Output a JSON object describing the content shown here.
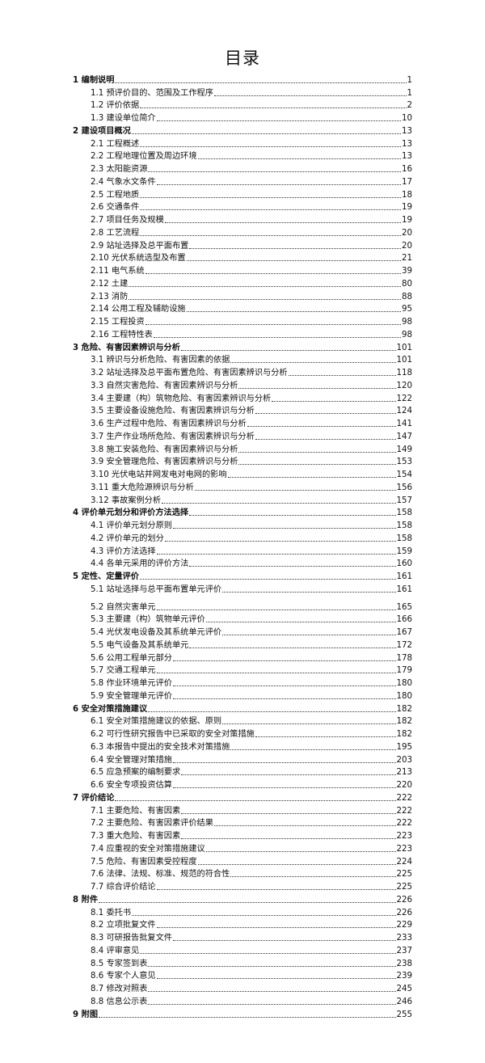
{
  "title": "目录",
  "entries": [
    {
      "level": 1,
      "label": "1 编制说明",
      "page": "1"
    },
    {
      "level": 2,
      "label": "1.1 预评价目的、范围及工作程序",
      "page": "1"
    },
    {
      "level": 2,
      "label": "1.2 评价依据",
      "page": "2"
    },
    {
      "level": 2,
      "label": "1.3 建设单位简介",
      "page": "10"
    },
    {
      "level": 1,
      "label": "2 建设项目概况",
      "page": "13"
    },
    {
      "level": 2,
      "label": "2.1 工程概述",
      "page": "13"
    },
    {
      "level": 2,
      "label": "2.2 工程地理位置及周边环境",
      "page": "13"
    },
    {
      "level": 2,
      "label": "2.3 太阳能资源",
      "page": "16"
    },
    {
      "level": 2,
      "label": "2.4 气象水文条件",
      "page": "17"
    },
    {
      "level": 2,
      "label": "2.5 工程地质",
      "page": "18"
    },
    {
      "level": 2,
      "label": "2.6 交通条件",
      "page": "19"
    },
    {
      "level": 2,
      "label": "2.7 项目任务及规模",
      "page": "19"
    },
    {
      "level": 2,
      "label": "2.8 工艺流程",
      "page": "20"
    },
    {
      "level": 2,
      "label": "2.9 站址选择及总平面布置",
      "page": "20"
    },
    {
      "level": 2,
      "label": "2.10 光伏系统选型及布置",
      "page": "21"
    },
    {
      "level": 2,
      "label": "2.11 电气系统",
      "page": "39"
    },
    {
      "level": 2,
      "label": "2.12 土建",
      "page": "80"
    },
    {
      "level": 2,
      "label": "2.13 消防",
      "page": "88"
    },
    {
      "level": 2,
      "label": "2.14 公用工程及辅助设施",
      "page": "95"
    },
    {
      "level": 2,
      "label": "2.15 工程投资",
      "page": "98"
    },
    {
      "level": 2,
      "label": "2.16 工程特性表",
      "page": "98"
    },
    {
      "level": 1,
      "label": "3 危险、有害因素辨识与分析",
      "page": "101"
    },
    {
      "level": 2,
      "label": "3.1 辨识与分析危险、有害因素的依据",
      "page": "101"
    },
    {
      "level": 2,
      "label": "3.2 站址选择及总平面布置危险、有害因素辨识与分析",
      "page": "118"
    },
    {
      "level": 2,
      "label": "3.3 自然灾害危险、有害因素辨识与分析",
      "page": "120"
    },
    {
      "level": 2,
      "label": "3.4 主要建（构）筑物危险、有害因素辨识与分析",
      "page": "122"
    },
    {
      "level": 2,
      "label": "3.5 主要设备设施危险、有害因素辨识与分析",
      "page": "124"
    },
    {
      "level": 2,
      "label": "3.6 生产过程中危险、有害因素辨识与分析",
      "page": "141"
    },
    {
      "level": 2,
      "label": "3.7 生产作业场所危险、有害因素辨识与分析",
      "page": "147"
    },
    {
      "level": 2,
      "label": "3.8 施工安装危险、有害因素辨识与分析",
      "page": "149"
    },
    {
      "level": 2,
      "label": "3.9 安全管理危险、有害因素辨识与分析",
      "page": "153"
    },
    {
      "level": 2,
      "label": "3.10 光伏电站并网发电对电网的影响",
      "page": "154"
    },
    {
      "level": 2,
      "label": "3.11 重大危险源辨识与分析",
      "page": "156"
    },
    {
      "level": 2,
      "label": "3.12 事故案例分析",
      "page": "157"
    },
    {
      "level": 1,
      "label": "4 评价单元划分和评价方法选择",
      "page": "158"
    },
    {
      "level": 2,
      "label": "4.1 评价单元划分原则",
      "page": "158"
    },
    {
      "level": 2,
      "label": "4.2 评价单元的划分",
      "page": "158"
    },
    {
      "level": 2,
      "label": "4.3 评价方法选择",
      "page": "159"
    },
    {
      "level": 2,
      "label": "4.4 各单元采用的评价方法",
      "page": "160"
    },
    {
      "level": 1,
      "label": "5 定性、定量评价",
      "page": "161"
    },
    {
      "level": 2,
      "label": "5.1 站址选择与总平面布置单元评价",
      "page": "161",
      "gap": true
    },
    {
      "level": 2,
      "label": "5.2 自然灾害单元",
      "page": "165"
    },
    {
      "level": 2,
      "label": "5.3 主要建（构）筑物单元评价",
      "page": "166"
    },
    {
      "level": 2,
      "label": "5.4 光伏发电设备及其系统单元评价",
      "page": "167"
    },
    {
      "level": 2,
      "label": "5.5 电气设备及其系统单元",
      "page": "172"
    },
    {
      "level": 2,
      "label": "5.6 公用工程单元部分",
      "page": "178"
    },
    {
      "level": 2,
      "label": "5.7 交通工程单元",
      "page": "179"
    },
    {
      "level": 2,
      "label": "5.8 作业环境单元评价",
      "page": "180"
    },
    {
      "level": 2,
      "label": "5.9 安全管理单元评价",
      "page": "180"
    },
    {
      "level": 1,
      "label": "6 安全对策措施建议",
      "page": "182"
    },
    {
      "level": 2,
      "label": "6.1 安全对策措施建议的依据、原则",
      "page": "182"
    },
    {
      "level": 2,
      "label": "6.2 可行性研究报告中已采取的安全对策措施",
      "page": "182"
    },
    {
      "level": 2,
      "label": "6.3 本报告中提出的安全技术对策措施",
      "page": "195"
    },
    {
      "level": 2,
      "label": "6.4 安全管理对策措施",
      "page": "203"
    },
    {
      "level": 2,
      "label": "6.5 应急预案的编制要求",
      "page": "213"
    },
    {
      "level": 2,
      "label": "6.6 安全专项投资估算",
      "page": "220"
    },
    {
      "level": 1,
      "label": "7 评价结论",
      "page": "222"
    },
    {
      "level": 2,
      "label": "7.1 主要危险、有害因素",
      "page": "222"
    },
    {
      "level": 2,
      "label": "7.2 主要危险、有害因素评价结果",
      "page": "222"
    },
    {
      "level": 2,
      "label": "7.3 重大危险、有害因素",
      "page": "223"
    },
    {
      "level": 2,
      "label": "7.4 应重视的安全对策措施建议",
      "page": "223"
    },
    {
      "level": 2,
      "label": "7.5 危险、有害因素受控程度",
      "page": "224"
    },
    {
      "level": 2,
      "label": "7.6 法律、法规、标准、规范的符合性",
      "page": "225"
    },
    {
      "level": 2,
      "label": "7.7 综合评价结论",
      "page": "225"
    },
    {
      "level": 1,
      "label": "8 附件",
      "page": "226"
    },
    {
      "level": 2,
      "label": "8.1 委托书",
      "page": "226"
    },
    {
      "level": 2,
      "label": "8.2 立项批复文件",
      "page": "229"
    },
    {
      "level": 2,
      "label": "8.3 可研报告批复文件",
      "page": "233"
    },
    {
      "level": 2,
      "label": "8.4 评审意见",
      "page": "237"
    },
    {
      "level": 2,
      "label": "8.5 专家签到表",
      "page": "238"
    },
    {
      "level": 2,
      "label": "8.6 专家个人意见",
      "page": "239"
    },
    {
      "level": 2,
      "label": "8.7 修改对照表",
      "page": "245"
    },
    {
      "level": 2,
      "label": "8.8 信息公示表",
      "page": "246"
    },
    {
      "level": 1,
      "label": "9 附图",
      "page": "255"
    }
  ]
}
